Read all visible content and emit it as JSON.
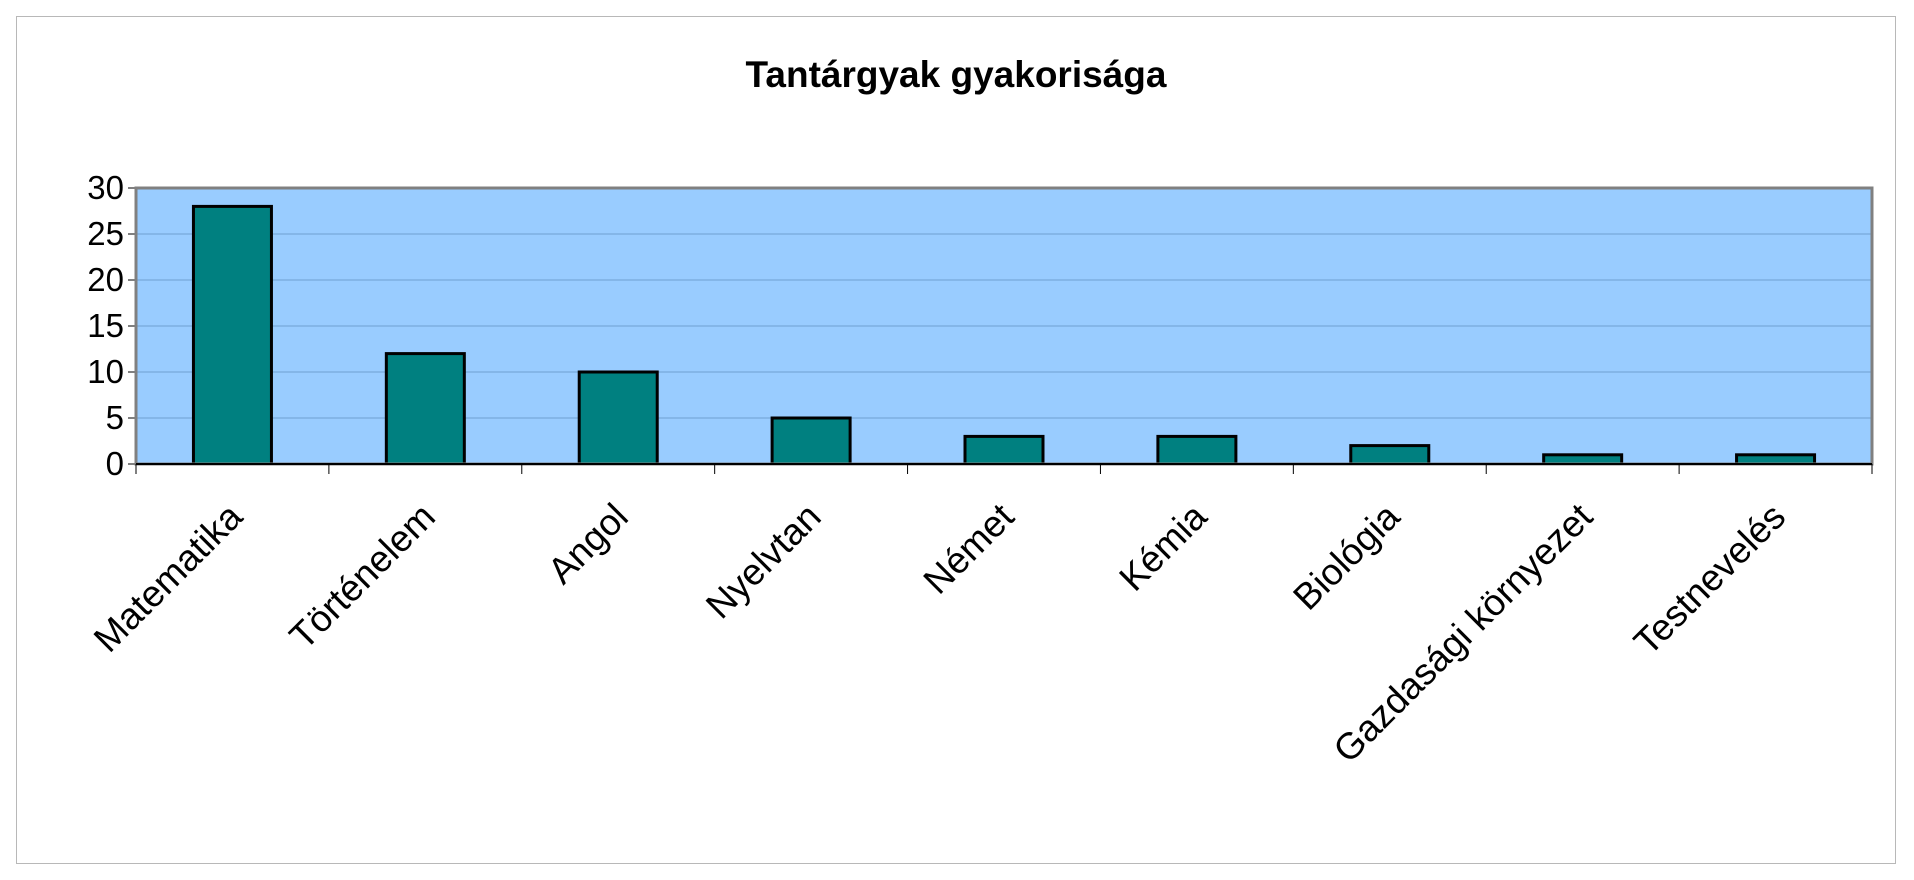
{
  "chart_data": {
    "type": "bar",
    "title": "Tantárgyak gyakorisága",
    "xlabel": "",
    "ylabel": "",
    "categories": [
      "Matematika",
      "Történelem",
      "Angol",
      "Nyelvtan",
      "Német",
      "Kémia",
      "Biológia",
      "Gazdasági környezet",
      "Testnevelés"
    ],
    "values": [
      28,
      12,
      10,
      5,
      3,
      3,
      2,
      1,
      1
    ],
    "ylim": [
      0,
      30
    ],
    "yticks": [
      "0",
      "5",
      "10",
      "15",
      "20",
      "25",
      "30"
    ],
    "grid": true,
    "legend": "none",
    "colors": {
      "bar_fill": "#008080",
      "bar_stroke": "#000000",
      "plot_background": "#99CCFF",
      "plot_border": "#808080",
      "gridline": "#6f9fd0"
    }
  }
}
